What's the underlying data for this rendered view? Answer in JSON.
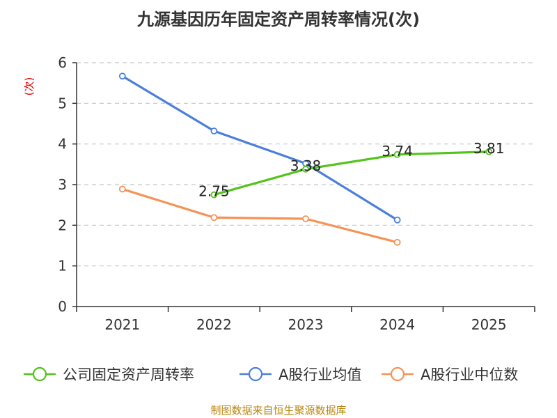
{
  "chart_data": {
    "type": "line",
    "title": "九源基因历年固定资产周转率情况(次)",
    "ylabel": "(次)",
    "xlabel": "",
    "ylim": [
      0,
      6
    ],
    "yticks": [
      "0",
      "1",
      "2",
      "3",
      "4",
      "5",
      "6"
    ],
    "categories": [
      "2021",
      "2022",
      "2023",
      "2024",
      "2025"
    ],
    "grid": true,
    "legend_position": "bottom",
    "series": [
      {
        "name": "公司固定资产周转率",
        "color": "#52c41a",
        "values": [
          null,
          2.75,
          3.38,
          3.74,
          3.81
        ],
        "labels": [
          null,
          "2.75",
          "3.38",
          "3.74",
          "3.81"
        ]
      },
      {
        "name": "A股行业均值",
        "color": "#4a7fdc",
        "values": [
          5.67,
          4.32,
          3.52,
          2.13,
          null
        ]
      },
      {
        "name": "A股行业中位数",
        "color": "#f79256",
        "values": [
          2.89,
          2.19,
          2.16,
          1.58,
          null
        ]
      }
    ],
    "source": "制图数据来自恒生聚源数据库"
  }
}
